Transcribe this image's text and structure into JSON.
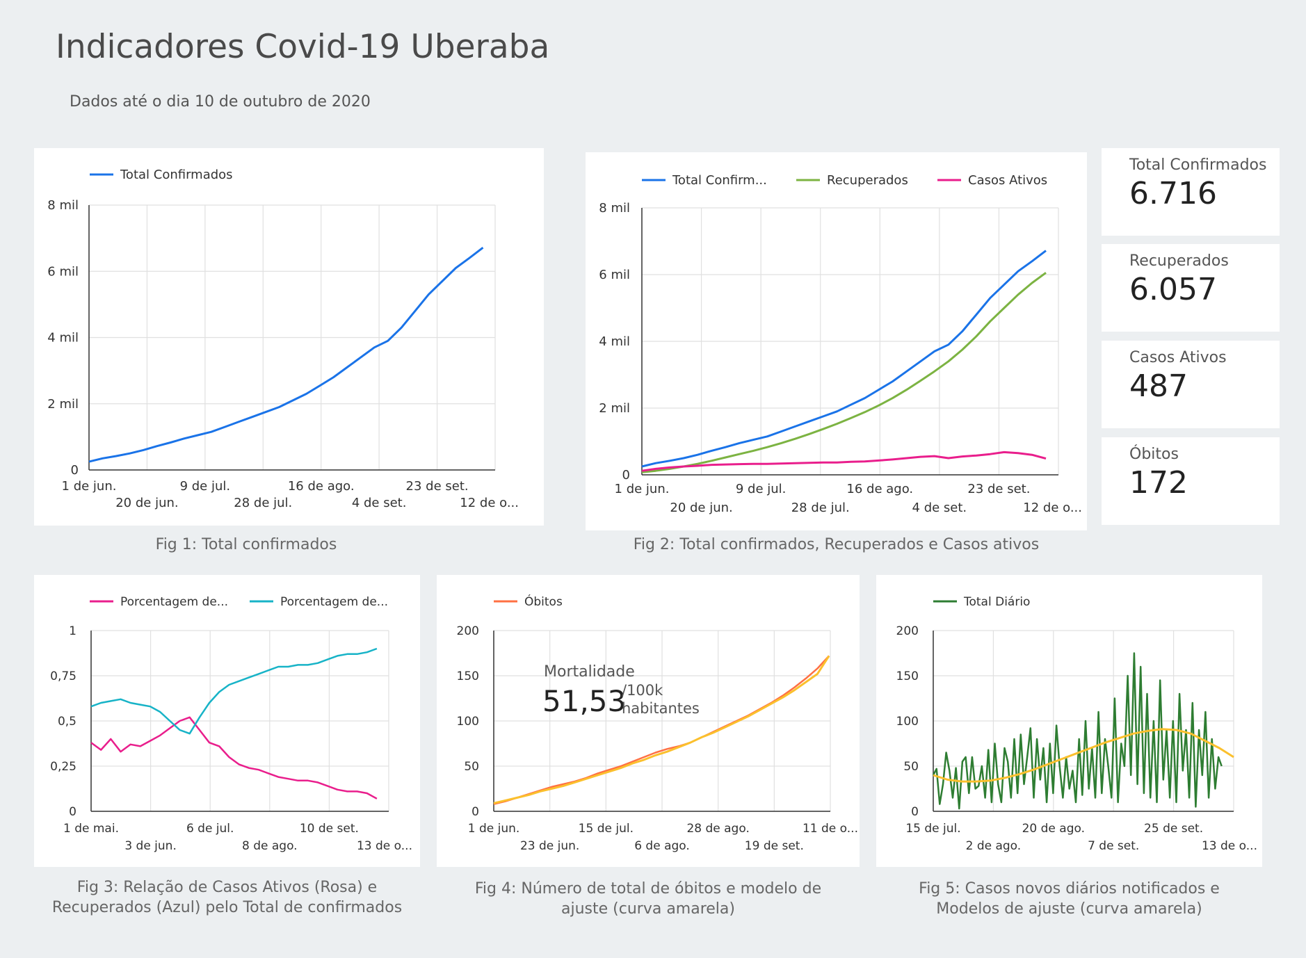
{
  "header": {
    "title": "Indicadores Covid-19 Uberaba",
    "subtitle": "Dados até o dia 10 de outubro de 2020"
  },
  "kpis": [
    {
      "label": "Total Confirmados",
      "value": "6.716"
    },
    {
      "label": "Recuperados",
      "value": "6.057"
    },
    {
      "label": "Casos Ativos",
      "value": "487"
    },
    {
      "label": "Óbitos",
      "value": "172"
    }
  ],
  "captions": {
    "fig1": "Fig 1: Total confirmados",
    "fig2": "Fig 2:  Total confirmados, Recuperados e Casos ativos",
    "fig3_line1": "Fig 3:  Relação de Casos Ativos (Rosa) e",
    "fig3_line2": "Recuperados (Azul)  pelo Total de confirmados",
    "fig4_line1": "Fig 4:  Número de total de óbitos e modelo de",
    "fig4_line2": "ajuste (curva amarela)",
    "fig5_line1": "Fig 5:  Casos novos diários notificados e",
    "fig5_line2": "Modelos de ajuste (curva amarela)"
  },
  "mortality": {
    "label": "Mortalidade",
    "value": "51,53",
    "unit_line1": "/100k",
    "unit_line2": "habitantes"
  },
  "colors": {
    "blue": "#1a73e8",
    "green": "#7cb342",
    "pink": "#e91e8c",
    "cyan": "#17b3c7",
    "orange": "#ff7043",
    "yellow": "#fbc02d",
    "darkgreen": "#2e7d32"
  },
  "chart_data": [
    {
      "id": "fig1",
      "type": "line",
      "x_start": "2020-06-01",
      "x_end": "2020-10-10",
      "ylim": [
        0,
        8000
      ],
      "yticks": [
        "0",
        "2 mil",
        "4 mil",
        "6 mil",
        "8 mil"
      ],
      "xticks_top": [
        "1 de jun.",
        "9 de jul.",
        "16 de ago.",
        "23 de set."
      ],
      "xticks_bottom": [
        "20 de jun.",
        "28 de jul.",
        "4 de set.",
        "12 de o..."
      ],
      "legend": "top-left",
      "grid": true,
      "series": [
        {
          "name": "Total Confirmados",
          "color": "#1a73e8",
          "values": [
            250,
            350,
            420,
            500,
            600,
            720,
            830,
            950,
            1050,
            1150,
            1300,
            1450,
            1600,
            1750,
            1900,
            2100,
            2300,
            2550,
            2800,
            3100,
            3400,
            3700,
            3900,
            4300,
            4800,
            5300,
            5700,
            6100,
            6400,
            6716
          ]
        }
      ]
    },
    {
      "id": "fig2",
      "type": "line",
      "x_start": "2020-06-01",
      "x_end": "2020-10-10",
      "ylim": [
        0,
        8000
      ],
      "yticks": [
        "0",
        "2 mil",
        "4 mil",
        "6 mil",
        "8 mil"
      ],
      "xticks_top": [
        "1 de jun.",
        "9 de jul.",
        "16 de ago.",
        "23 de set."
      ],
      "xticks_bottom": [
        "20 de jun.",
        "28 de jul.",
        "4 de set.",
        "12 de o..."
      ],
      "legend": "top",
      "grid": true,
      "series": [
        {
          "name": "Total Confirm...",
          "color": "#1a73e8",
          "values": [
            250,
            350,
            420,
            500,
            600,
            720,
            830,
            950,
            1050,
            1150,
            1300,
            1450,
            1600,
            1750,
            1900,
            2100,
            2300,
            2550,
            2800,
            3100,
            3400,
            3700,
            3900,
            4300,
            4800,
            5300,
            5700,
            6100,
            6400,
            6716
          ]
        },
        {
          "name": "Recuperados",
          "color": "#7cb342",
          "values": [
            80,
            120,
            180,
            250,
            330,
            420,
            520,
            620,
            720,
            830,
            950,
            1080,
            1220,
            1370,
            1530,
            1700,
            1880,
            2080,
            2300,
            2550,
            2820,
            3100,
            3400,
            3750,
            4150,
            4600,
            5000,
            5400,
            5750,
            6057
          ]
        },
        {
          "name": "Casos Ativos",
          "color": "#e91e8c",
          "values": [
            120,
            180,
            220,
            250,
            270,
            300,
            310,
            320,
            330,
            330,
            340,
            350,
            360,
            370,
            370,
            390,
            400,
            430,
            460,
            500,
            540,
            560,
            500,
            550,
            580,
            620,
            680,
            650,
            600,
            487
          ]
        }
      ]
    },
    {
      "id": "fig3",
      "type": "line",
      "x_start": "2020-05-01",
      "x_end": "2020-10-10",
      "ylim": [
        0,
        1
      ],
      "yticks": [
        "0",
        "0,25",
        "0,5",
        "0,75",
        "1"
      ],
      "xticks_top": [
        "1 de mai.",
        "6 de jul.",
        "10 de set."
      ],
      "xticks_bottom": [
        "3 de jun.",
        "8 de ago.",
        "13 de o..."
      ],
      "legend": "top",
      "grid": true,
      "series": [
        {
          "name": "Porcentagem de...",
          "color": "#e91e8c",
          "values": [
            0.38,
            0.34,
            0.4,
            0.33,
            0.37,
            0.36,
            0.39,
            0.42,
            0.46,
            0.5,
            0.52,
            0.45,
            0.38,
            0.36,
            0.3,
            0.26,
            0.24,
            0.23,
            0.21,
            0.19,
            0.18,
            0.17,
            0.17,
            0.16,
            0.14,
            0.12,
            0.11,
            0.11,
            0.1,
            0.07
          ]
        },
        {
          "name": "Porcentagem de...",
          "color": "#17b3c7",
          "values": [
            0.58,
            0.6,
            0.61,
            0.62,
            0.6,
            0.59,
            0.58,
            0.55,
            0.5,
            0.45,
            0.43,
            0.52,
            0.6,
            0.66,
            0.7,
            0.72,
            0.74,
            0.76,
            0.78,
            0.8,
            0.8,
            0.81,
            0.81,
            0.82,
            0.84,
            0.86,
            0.87,
            0.87,
            0.88,
            0.9
          ]
        }
      ]
    },
    {
      "id": "fig4",
      "type": "line",
      "x_start": "2020-06-01",
      "x_end": "2020-10-10",
      "ylim": [
        0,
        200
      ],
      "yticks": [
        "0",
        "50",
        "100",
        "150",
        "200"
      ],
      "xticks_top": [
        "1 de jun.",
        "15 de jul.",
        "28 de ago.",
        "11 de o..."
      ],
      "xticks_bottom": [
        "23 de jun.",
        "6 de ago.",
        "19 de set."
      ],
      "legend": "top-left",
      "grid": true,
      "series": [
        {
          "name": "Óbitos",
          "color": "#ff7043",
          "values": [
            8,
            11,
            15,
            19,
            23,
            27,
            30,
            33,
            37,
            42,
            46,
            50,
            55,
            60,
            65,
            69,
            72,
            76,
            82,
            88,
            94,
            100,
            106,
            113,
            120,
            128,
            137,
            147,
            158,
            172
          ]
        },
        {
          "name": "",
          "color": "#fbc02d",
          "values": [
            9,
            12,
            15,
            18,
            22,
            25,
            28,
            32,
            36,
            40,
            44,
            48,
            53,
            57,
            62,
            66,
            71,
            76,
            82,
            87,
            93,
            99,
            105,
            112,
            119,
            126,
            134,
            143,
            152,
            172
          ]
        }
      ]
    },
    {
      "id": "fig5",
      "type": "line",
      "x_start": "2020-07-15",
      "x_end": "2020-10-10",
      "ylim": [
        0,
        200
      ],
      "yticks": [
        "0",
        "50",
        "100",
        "150",
        "200"
      ],
      "xticks_top": [
        "15 de jul.",
        "20 de ago.",
        "25 de set."
      ],
      "xticks_bottom": [
        "2 de ago.",
        "7 de set.",
        "13 de o..."
      ],
      "legend": "top-left",
      "grid": true,
      "series": [
        {
          "name": "Total Diário",
          "color": "#2e7d32",
          "values": [
            40,
            47,
            8,
            30,
            65,
            45,
            15,
            48,
            3,
            55,
            60,
            20,
            60,
            25,
            28,
            50,
            15,
            68,
            10,
            75,
            30,
            10,
            70,
            55,
            15,
            80,
            20,
            85,
            30,
            60,
            92,
            15,
            80,
            35,
            70,
            10,
            75,
            20,
            95,
            50,
            15,
            60,
            25,
            45,
            10,
            80,
            18,
            100,
            25,
            70,
            15,
            110,
            20,
            80,
            50,
            15,
            125,
            10,
            75,
            50,
            150,
            40,
            175,
            30,
            160,
            20,
            130,
            15,
            100,
            10,
            145,
            35,
            90,
            15,
            100,
            10,
            130,
            45,
            90,
            15,
            120,
            5,
            90,
            40,
            110,
            15,
            80,
            25,
            60,
            50
          ]
        },
        {
          "name": "",
          "color": "#fbc02d",
          "values": [
            40,
            35,
            33,
            33,
            34,
            37,
            41,
            46,
            52,
            58,
            64,
            70,
            76,
            81,
            86,
            89,
            91,
            90,
            86,
            78,
            70,
            60
          ]
        }
      ]
    }
  ]
}
